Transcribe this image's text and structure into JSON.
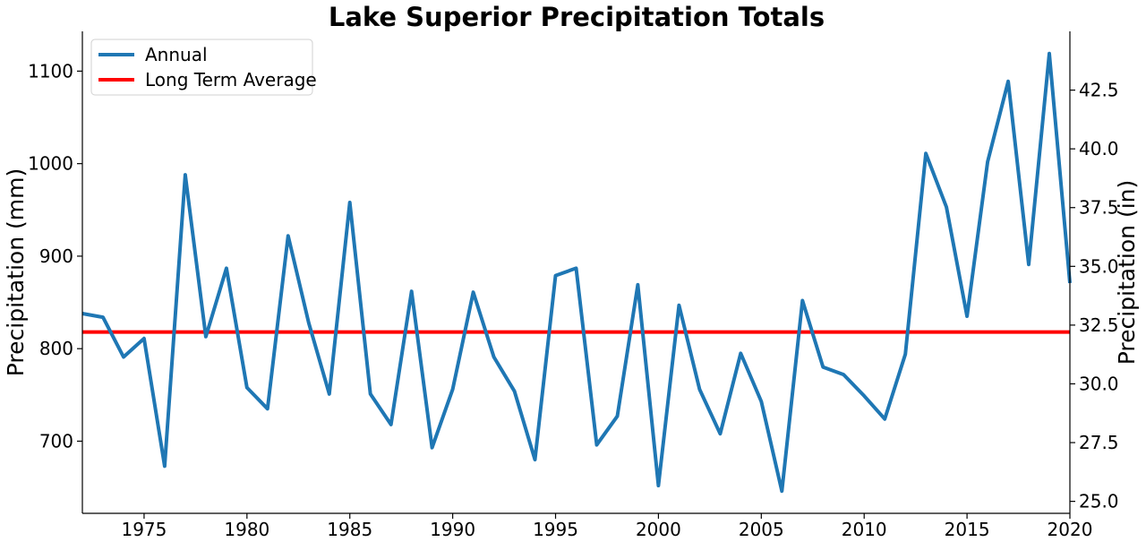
{
  "chart_data": {
    "type": "line",
    "title": "Lake Superior Precipitation Totals",
    "xlabel": "",
    "ylabel": "Precipitation (mm)",
    "ylabel_right": "Precipitation (in)",
    "xlim": [
      1972,
      2020
    ],
    "ylim": [
      622,
      1143
    ],
    "ylim_right": [
      24.49,
      45.0
    ],
    "xticks": [
      "1975",
      "1980",
      "1985",
      "1990",
      "1995",
      "2000",
      "2005",
      "2010",
      "2015",
      "2020"
    ],
    "yticks": [
      "700",
      "800",
      "900",
      "1000",
      "1100"
    ],
    "yticks_right": [
      "25.0",
      "27.5",
      "30.0",
      "32.5",
      "35.0",
      "37.5",
      "40.0",
      "42.5"
    ],
    "grid": false,
    "legend_position": "top-left",
    "x": [
      1972,
      1973,
      1974,
      1975,
      1976,
      1977,
      1978,
      1979,
      1980,
      1981,
      1982,
      1983,
      1984,
      1985,
      1986,
      1987,
      1988,
      1989,
      1990,
      1991,
      1992,
      1993,
      1994,
      1995,
      1996,
      1997,
      1998,
      1999,
      2000,
      2001,
      2002,
      2003,
      2004,
      2005,
      2006,
      2007,
      2008,
      2009,
      2010,
      2011,
      2012,
      2013,
      2014,
      2015,
      2016,
      2017,
      2018,
      2019,
      2020
    ],
    "series": [
      {
        "name": "Annual",
        "color": "#1f77b4",
        "values": [
          838,
          834,
          791,
          811,
          673,
          988,
          813,
          887,
          758,
          735,
          922,
          828,
          751,
          958,
          751,
          718,
          862,
          693,
          756,
          861,
          791,
          754,
          680,
          879,
          887,
          696,
          727,
          869,
          652,
          847,
          756,
          708,
          795,
          743,
          646,
          852,
          780,
          772,
          749,
          724,
          794,
          1011,
          953,
          835,
          1002,
          1089,
          891,
          1119,
          871
        ]
      },
      {
        "name": "Long Term Average",
        "color": "#ff0000",
        "constant": 818
      }
    ]
  }
}
